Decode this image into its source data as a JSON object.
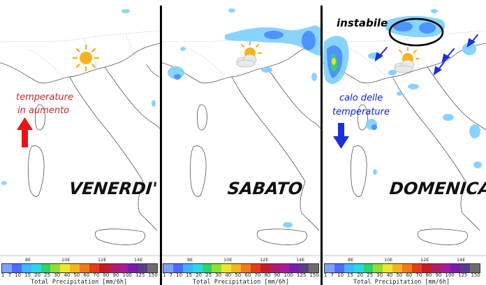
{
  "panels": [
    {
      "day": "VENERDI'",
      "icon": "sun-icon"
    },
    {
      "day": "SABATO",
      "icon": "sun-behind-cloud-icon"
    },
    {
      "day": "DOMENICA",
      "icon": "sun-behind-cloud-icon"
    }
  ],
  "annotations": {
    "friday_line1": "temperature",
    "friday_line2": "in aumento",
    "sunday_unstable": "instabile",
    "sunday_line1": "calo delle",
    "sunday_line2": "temperature"
  },
  "longitude_labels": [
    "8E",
    "10E",
    "12E",
    "14E"
  ],
  "colorbar": {
    "title": "Total Precipitation [mm/6h]",
    "ticks": [
      "1",
      "7",
      "10",
      "15",
      "20",
      "25",
      "30",
      "40",
      "50",
      "60",
      "70",
      "80",
      "90",
      "100",
      "125",
      "150"
    ],
    "colors": [
      "#7fa0ff",
      "#4a6cff",
      "#3fb4ff",
      "#29d8e8",
      "#2fd16a",
      "#8fe030",
      "#e8e830",
      "#f5b41e",
      "#f07a18",
      "#e43c1c",
      "#c41a2a",
      "#b01c6a",
      "#a41aa0",
      "#7a1ab0",
      "#5b3a8c",
      "#6c6c6c"
    ]
  },
  "colors": {
    "arrow_red": "#e8141a",
    "arrow_blue": "#1a2ee0",
    "precip_light": "#7fd0ff",
    "precip_mid": "#3f8cff",
    "precip_green": "#3cc85a",
    "precip_yellow": "#e0e030"
  }
}
